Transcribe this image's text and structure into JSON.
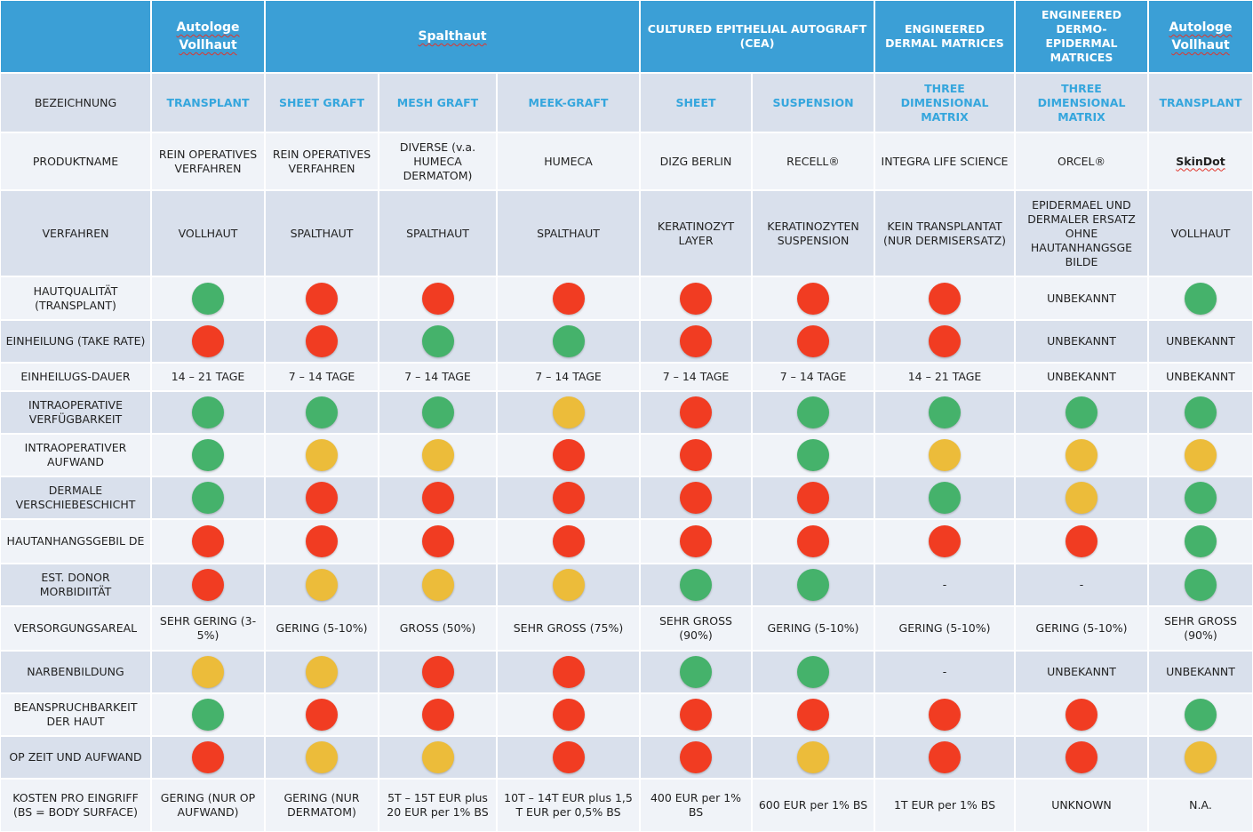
{
  "colors": {
    "green": "#45b26b",
    "red": "#f13c22",
    "yellow": "#ecbc3a",
    "header_blue": "#3b9fd6",
    "accent_blue": "#35a6dd"
  },
  "groups": [
    {
      "label": "Autologe Vollhaut",
      "wavy": true
    },
    {
      "label": "Spalthaut",
      "wavy": true
    },
    {
      "label": "CULTURED EPITHELIAL AUTOGRAFT (CEA)",
      "wavy": false
    },
    {
      "label": "ENGINEERED DERMAL MATRICES",
      "wavy": false
    },
    {
      "label": "ENGINEERED DERMO-EPIDERMAL MATRICES",
      "wavy": false
    },
    {
      "label": "Autologe Vollhaut",
      "wavy": true
    }
  ],
  "rows": [
    {
      "label": "BEZEICHNUNG",
      "type": "sub",
      "cells": [
        "TRANSPLANT",
        "SHEET GRAFT",
        "MESH GRAFT",
        "MEEK-GRAFT",
        "SHEET",
        "SUSPENSION",
        "THREE DIMENSIONAL MATRIX",
        "THREE DIMENSIONAL MATRIX",
        "TRANSPLANT"
      ]
    },
    {
      "label": "PRODUKTNAME",
      "type": "text",
      "cells": [
        "REIN OPERATIVES VERFAHREN",
        "REIN OPERATIVES VERFAHREN",
        "DIVERSE (v.a. HUMECA DERMATOM)",
        "HUMECA",
        "DIZG BERLIN",
        "RECELL®",
        "INTEGRA LIFE SCIENCE",
        "ORCEL®",
        "SkinDot"
      ]
    },
    {
      "label": "VERFAHREN",
      "type": "text",
      "cells": [
        "VOLLHAUT",
        "SPALTHAUT",
        "SPALTHAUT",
        "SPALTHAUT",
        "KERATINOZYT LAYER",
        "KERATINOZYTEN SUSPENSION",
        "KEIN TRANSPLANTAT (NUR DERMISERSATZ)",
        "EPIDERMAEL UND DERMALER ERSATZ OHNE HAUTANHANGSGE BILDE",
        "VOLLHAUT"
      ]
    },
    {
      "label": "HAUTQUALITÄT (TRANSPLANT)",
      "type": "dot",
      "cells": [
        "green",
        "red",
        "red",
        "red",
        "red",
        "red",
        "red",
        "UNBEKANNT",
        "green"
      ]
    },
    {
      "label": "EINHEILUNG (TAKE RATE)",
      "type": "dot",
      "cells": [
        "red",
        "red",
        "green",
        "green",
        "red",
        "red",
        "red",
        "UNBEKANNT",
        "UNBEKANNT"
      ]
    },
    {
      "label": "EINHEILUGS-DAUER",
      "type": "text",
      "cells": [
        "14 – 21 TAGE",
        "7 – 14 TAGE",
        "7 – 14 TAGE",
        "7 – 14 TAGE",
        "7 – 14 TAGE",
        "7 – 14 TAGE",
        "14 – 21 TAGE",
        "UNBEKANNT",
        "UNBEKANNT"
      ]
    },
    {
      "label": "INTRAOPERATIVE VERFÜGBARKEIT",
      "type": "dot",
      "cells": [
        "green",
        "green",
        "green",
        "yellow",
        "red",
        "green",
        "green",
        "green",
        "green"
      ]
    },
    {
      "label": "INTRAOPERATIVER AUFWAND",
      "type": "dot",
      "cells": [
        "green",
        "yellow",
        "yellow",
        "red",
        "red",
        "green",
        "yellow",
        "yellow",
        "yellow"
      ]
    },
    {
      "label": "DERMALE VERSCHIEBESCHICHT",
      "type": "dot",
      "cells": [
        "green",
        "red",
        "red",
        "red",
        "red",
        "red",
        "green",
        "yellow",
        "green"
      ]
    },
    {
      "label": "HAUTANHANGSGEBIL DE",
      "type": "dot",
      "cells": [
        "red",
        "red",
        "red",
        "red",
        "red",
        "red",
        "red",
        "red",
        "green"
      ]
    },
    {
      "label": "EST. DONOR MORBIDIITÄT",
      "type": "dot",
      "cells": [
        "red",
        "yellow",
        "yellow",
        "yellow",
        "green",
        "green",
        "-",
        "-",
        "green"
      ]
    },
    {
      "label": "VERSORGUNGSAREAL",
      "type": "text",
      "cells": [
        "SEHR GERING (3-5%)",
        "GERING (5-10%)",
        "GROSS (50%)",
        "SEHR GROSS (75%)",
        "SEHR GROSS (90%)",
        "GERING (5-10%)",
        "GERING (5-10%)",
        "GERING (5-10%)",
        "SEHR GROSS (90%)"
      ]
    },
    {
      "label": "NARBENBILDUNG",
      "type": "dot",
      "cells": [
        "yellow",
        "yellow",
        "red",
        "red",
        "green",
        "green",
        "-",
        "UNBEKANNT",
        "UNBEKANNT"
      ]
    },
    {
      "label": "BEANSPRUCHBARKEIT DER HAUT",
      "type": "dot",
      "cells": [
        "green",
        "red",
        "red",
        "red",
        "red",
        "red",
        "red",
        "red",
        "green"
      ]
    },
    {
      "label": "OP ZEIT UND AUFWAND",
      "type": "dot",
      "cells": [
        "red",
        "yellow",
        "yellow",
        "red",
        "red",
        "yellow",
        "red",
        "red",
        "yellow"
      ]
    },
    {
      "label": "KOSTEN  PRO EINGRIFF (BS = BODY SURFACE)",
      "type": "text",
      "cells": [
        "GERING (NUR OP AUFWAND)",
        "GERING (NUR DERMATOM)",
        "5T – 15T EUR plus 20 EUR per 1% BS",
        "10T – 14T EUR plus 1,5 T EUR per 0,5% BS",
        "400 EUR per 1% BS",
        "600 EUR per 1% BS",
        "1T EUR per 1% BS",
        "UNKNOWN",
        "N.A."
      ]
    }
  ]
}
